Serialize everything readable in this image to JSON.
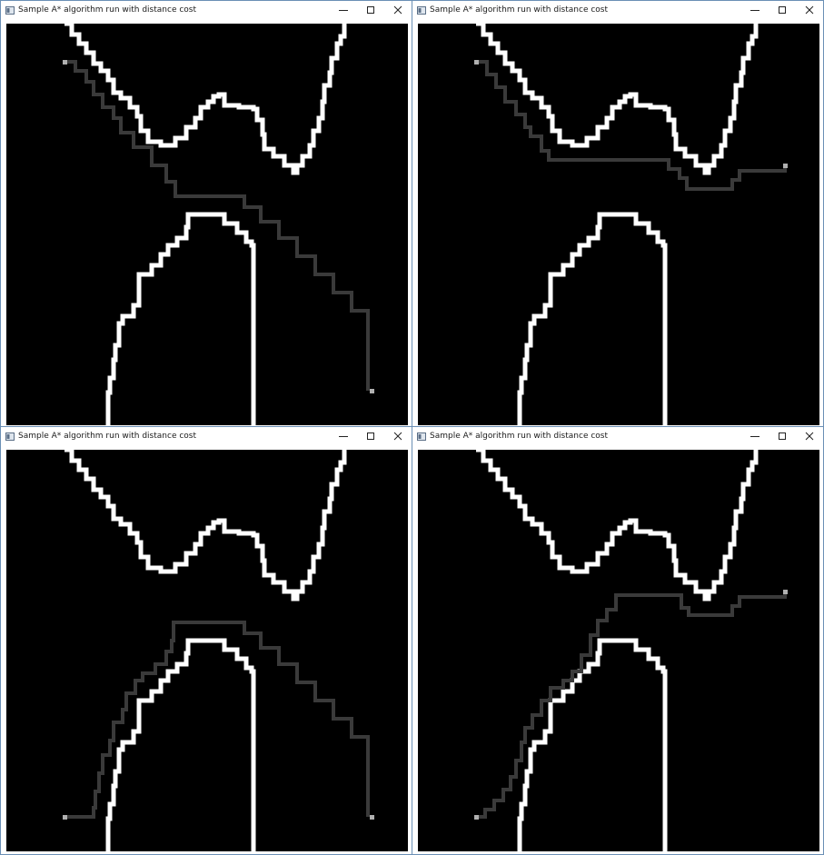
{
  "colors": {
    "wall": "#ffffff",
    "path": "#3a3a3a",
    "endpoint": "#b0b0b0",
    "background": "#000000",
    "window_border": "#6b8fb5"
  },
  "windows": [
    {
      "id": "win-tl",
      "title": "Sample A* algorithm run with distance cost",
      "minimize_icon": "minimize-icon",
      "maximize_icon": "maximize-icon",
      "close_icon": "close-icon"
    },
    {
      "id": "win-tr",
      "title": "Sample A* algorithm run with distance cost",
      "minimize_icon": "minimize-icon",
      "maximize_icon": "maximize-icon",
      "close_icon": "close-icon"
    },
    {
      "id": "win-bl",
      "title": "Sample A* algorithm run with distance cost",
      "minimize_icon": "minimize-icon",
      "maximize_icon": "maximize-icon",
      "close_icon": "close-icon"
    },
    {
      "id": "win-br",
      "title": "Sample A* algorithm run with distance cost",
      "minimize_icon": "minimize-icon",
      "maximize_icon": "maximize-icon",
      "close_icon": "close-icon"
    }
  ]
}
